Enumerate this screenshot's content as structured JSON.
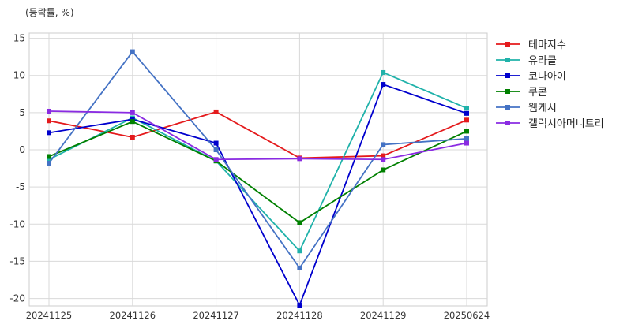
{
  "chart_data": {
    "type": "line",
    "unit_label": "(등락률, %)",
    "x": [
      "20241125",
      "20241126",
      "20241127",
      "20241128",
      "20241129",
      "20250624"
    ],
    "yticks": [
      15,
      10,
      5,
      0,
      -5,
      -10,
      -15,
      -20
    ],
    "ylim": [
      -21,
      15.7
    ],
    "grid": true,
    "legend_position": "right",
    "series": [
      {
        "name": "테마지수",
        "color": "#e41a1c",
        "values": [
          3.9,
          1.7,
          5.1,
          -1.1,
          -0.8,
          4.0
        ]
      },
      {
        "name": "유라클",
        "color": "#20b2aa",
        "values": [
          -1.3,
          4.3,
          -1.5,
          -13.6,
          10.4,
          5.6
        ]
      },
      {
        "name": "코나아이",
        "color": "#0000cd",
        "values": [
          2.3,
          4.1,
          0.9,
          -20.9,
          8.8,
          4.9
        ]
      },
      {
        "name": "쿠콘",
        "color": "#008000",
        "values": [
          -0.9,
          3.8,
          -1.5,
          -9.8,
          -2.7,
          2.5
        ]
      },
      {
        "name": "웹케시",
        "color": "#4472c4",
        "values": [
          -1.8,
          13.2,
          0.0,
          -15.9,
          0.7,
          1.5
        ]
      },
      {
        "name": "갤럭시아머니트리",
        "color": "#8a2be2",
        "values": [
          5.2,
          5.0,
          -1.3,
          -1.2,
          -1.3,
          0.9
        ]
      }
    ]
  }
}
